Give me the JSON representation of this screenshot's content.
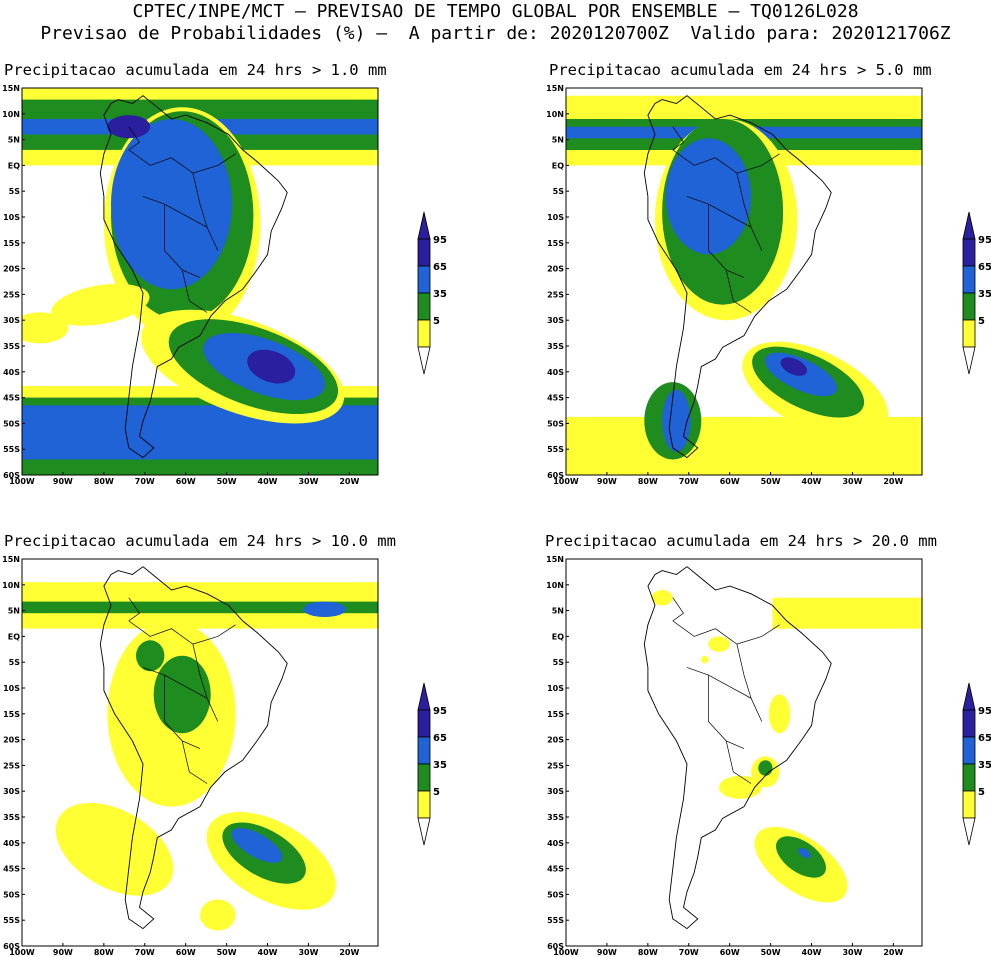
{
  "header": {
    "line1": "CPTEC/INPE/MCT – PREVISAO DE TEMPO GLOBAL POR ENSEMBLE – TQ0126L028",
    "line2": "Previsao de Probabilidades (%) –  A partir de: 2020120700Z  Valido para: 2020121706Z"
  },
  "panels": [
    {
      "title": "Precipitacao acumulada em 24 hrs > 1.0 mm"
    },
    {
      "title": "Precipitacao acumulada em 24 hrs > 5.0 mm"
    },
    {
      "title": "Precipitacao acumulada em 24 hrs > 10.0 mm"
    },
    {
      "title": "Precipitacao acumulada em 24 hrs > 20.0 mm"
    }
  ],
  "lat_labels": [
    "15N",
    "10N",
    "5N",
    "EQ",
    "5S",
    "10S",
    "15S",
    "20S",
    "25S",
    "30S",
    "35S",
    "40S",
    "45S",
    "50S",
    "55S",
    "60S"
  ],
  "lon_labels": [
    "100W",
    "90W",
    "80W",
    "70W",
    "60W",
    "50W",
    "40W",
    "30W",
    "20W"
  ],
  "legend": {
    "levels": [
      "95",
      "65",
      "35",
      "5"
    ],
    "colors": {
      "c95": "#2a1f9e",
      "c65": "#1f63d6",
      "c35": "#1e8c1e",
      "c5": "#ffff33",
      "outline": "#000000"
    }
  }
}
